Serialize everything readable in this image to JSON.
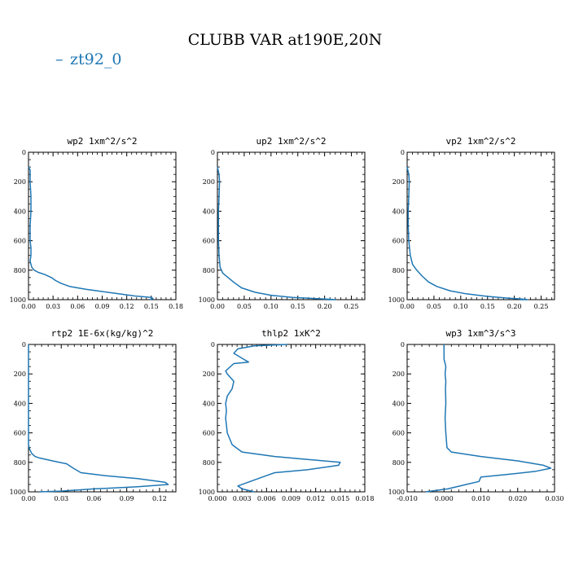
{
  "figure": {
    "title": "CLUBB VAR at190E,20N",
    "legend": {
      "label": "zt92_0",
      "color": "#1f77b4"
    }
  },
  "chart_data": [
    {
      "type": "line",
      "title": "wp2  1xm^2/s^2",
      "xlim": [
        0,
        0.18
      ],
      "ylim": [
        1000,
        0
      ],
      "xticks": [
        "0.00",
        "0.03",
        "0.06",
        "0.09",
        "0.12",
        "0.15",
        "0.18"
      ],
      "xtick_values": [
        0,
        0.03,
        0.06,
        0.09,
        0.12,
        0.15,
        0.18
      ],
      "yticks": [
        "0",
        "200",
        "400",
        "600",
        "800",
        "1000"
      ],
      "ytick_values": [
        0,
        200,
        400,
        600,
        800,
        1000
      ],
      "series": [
        {
          "name": "zt92_0",
          "color": "#1f77b4",
          "x": [
            0.0,
            0.002,
            0.002,
            0.003,
            0.003,
            0.002,
            0.002,
            0.003,
            0.003,
            0.002,
            0.003,
            0.004,
            0.007,
            0.012,
            0.02,
            0.028,
            0.033,
            0.04,
            0.05,
            0.07,
            0.09,
            0.11,
            0.13,
            0.15,
            0.152,
            0.148
          ],
          "y": [
            100,
            120,
            200,
            300,
            400,
            500,
            600,
            650,
            700,
            740,
            760,
            780,
            800,
            815,
            830,
            850,
            870,
            890,
            910,
            930,
            945,
            960,
            975,
            985,
            992,
            1000
          ]
        }
      ]
    },
    {
      "type": "line",
      "title": "up2  1xm^2/s^2",
      "xlim": [
        0,
        0.275
      ],
      "ylim": [
        1000,
        0
      ],
      "xticks": [
        "0.00",
        "0.05",
        "0.10",
        "0.15",
        "0.20",
        "0.25"
      ],
      "xtick_values": [
        0,
        0.05,
        0.1,
        0.15,
        0.2,
        0.25
      ],
      "yticks": [
        "0",
        "200",
        "400",
        "600",
        "800",
        "1000"
      ],
      "ytick_values": [
        0,
        200,
        400,
        600,
        800,
        1000
      ],
      "series": [
        {
          "name": "zt92_0",
          "color": "#1f77b4",
          "x": [
            0.0,
            0.003,
            0.004,
            0.003,
            0.002,
            0.002,
            0.002,
            0.003,
            0.005,
            0.01,
            0.02,
            0.03,
            0.045,
            0.07,
            0.1,
            0.14,
            0.18,
            0.21,
            0.22,
            0.205
          ],
          "y": [
            100,
            150,
            200,
            300,
            400,
            500,
            600,
            700,
            780,
            820,
            850,
            880,
            920,
            950,
            970,
            985,
            992,
            997,
            1000,
            1000
          ]
        }
      ]
    },
    {
      "type": "line",
      "title": "vp2  1xm^2/s^2",
      "xlim": [
        0,
        0.275
      ],
      "ylim": [
        1000,
        0
      ],
      "xticks": [
        "0.00",
        "0.05",
        "0.10",
        "0.15",
        "0.20",
        "0.25"
      ],
      "xtick_values": [
        0,
        0.05,
        0.1,
        0.15,
        0.2,
        0.25
      ],
      "yticks": [
        "0",
        "200",
        "400",
        "600",
        "800",
        "1000"
      ],
      "ytick_values": [
        0,
        200,
        400,
        600,
        800,
        1000
      ],
      "series": [
        {
          "name": "zt92_0",
          "color": "#1f77b4",
          "x": [
            0.0,
            0.003,
            0.004,
            0.003,
            0.002,
            0.002,
            0.003,
            0.006,
            0.01,
            0.018,
            0.028,
            0.04,
            0.055,
            0.08,
            0.11,
            0.15,
            0.19,
            0.215,
            0.225,
            0.21
          ],
          "y": [
            100,
            150,
            200,
            300,
            400,
            500,
            600,
            700,
            760,
            800,
            840,
            880,
            910,
            940,
            960,
            978,
            990,
            996,
            1000,
            1000
          ]
        }
      ]
    },
    {
      "type": "line",
      "title": "rtp2  1E-6x(kg/kg)^2",
      "xlim": [
        0,
        0.135
      ],
      "ylim": [
        1000,
        0
      ],
      "xticks": [
        "0.00",
        "0.03",
        "0.06",
        "0.09",
        "0.12"
      ],
      "xtick_values": [
        0,
        0.03,
        0.06,
        0.09,
        0.12
      ],
      "yticks": [
        "0",
        "200",
        "400",
        "600",
        "800",
        "1000"
      ],
      "ytick_values": [
        0,
        200,
        400,
        600,
        800,
        1000
      ],
      "series": [
        {
          "name": "zt92_0",
          "color": "#1f77b4",
          "x": [
            0.0,
            0.0,
            0.0,
            0.0,
            0.0,
            0.001,
            0.003,
            0.006,
            0.01,
            0.022,
            0.035,
            0.041,
            0.048,
            0.07,
            0.1,
            0.125,
            0.128,
            0.1,
            0.06,
            0.03,
            0.01
          ],
          "y": [
            0,
            200,
            400,
            600,
            680,
            710,
            740,
            760,
            770,
            790,
            810,
            840,
            870,
            890,
            910,
            935,
            950,
            965,
            980,
            995,
            1000
          ]
        }
      ]
    },
    {
      "type": "line",
      "title": "thlp2  1xK^2",
      "xlim": [
        0,
        0.018
      ],
      "ylim": [
        1000,
        0
      ],
      "xticks": [
        "0.000",
        "0.003",
        "0.006",
        "0.009",
        "0.012",
        "0.015",
        "0.018"
      ],
      "xtick_values": [
        0,
        0.003,
        0.006,
        0.009,
        0.012,
        0.015,
        0.018
      ],
      "yticks": [
        "0",
        "200",
        "400",
        "600",
        "800",
        "1000"
      ],
      "ytick_values": [
        0,
        200,
        400,
        600,
        800,
        1000
      ],
      "series": [
        {
          "name": "zt92_0",
          "color": "#1f77b4",
          "x": [
            0.0085,
            0.0045,
            0.0025,
            0.002,
            0.0032,
            0.0038,
            0.002,
            0.001,
            0.0012,
            0.002,
            0.0018,
            0.0012,
            0.001,
            0.0011,
            0.001,
            0.0012,
            0.0018,
            0.003,
            0.007,
            0.011,
            0.015,
            0.0148,
            0.011,
            0.007,
            0.006,
            0.004,
            0.0025,
            0.003,
            0.0045
          ],
          "y": [
            0,
            10,
            30,
            60,
            100,
            120,
            130,
            180,
            200,
            250,
            300,
            350,
            400,
            450,
            500,
            600,
            680,
            730,
            760,
            780,
            800,
            820,
            850,
            870,
            890,
            930,
            960,
            980,
            1000
          ]
        }
      ]
    },
    {
      "type": "line",
      "title": "wp3  1xm^3/s^3",
      "xlim": [
        -0.01,
        0.03
      ],
      "ylim": [
        1000,
        0
      ],
      "xticks": [
        "-0.010",
        "0.000",
        "0.010",
        "0.020",
        "0.030"
      ],
      "xtick_values": [
        -0.01,
        0.0,
        0.01,
        0.02,
        0.03
      ],
      "yticks": [
        "0",
        "200",
        "400",
        "600",
        "800",
        "1000"
      ],
      "ytick_values": [
        0,
        200,
        400,
        600,
        800,
        1000
      ],
      "series": [
        {
          "name": "zt92_0",
          "color": "#1f77b4",
          "x": [
            0.0,
            0.0,
            0.0005,
            0.0003,
            0.0005,
            0.0004,
            0.0005,
            0.0003,
            0.0005,
            0.0008,
            0.002,
            0.01,
            0.02,
            0.027,
            0.029,
            0.025,
            0.018,
            0.01,
            0.0095,
            0.006,
            0.001,
            -0.005
          ],
          "y": [
            0,
            100,
            150,
            200,
            250,
            300,
            400,
            500,
            600,
            700,
            730,
            760,
            790,
            820,
            840,
            860,
            880,
            900,
            930,
            950,
            980,
            1000
          ]
        }
      ]
    }
  ]
}
